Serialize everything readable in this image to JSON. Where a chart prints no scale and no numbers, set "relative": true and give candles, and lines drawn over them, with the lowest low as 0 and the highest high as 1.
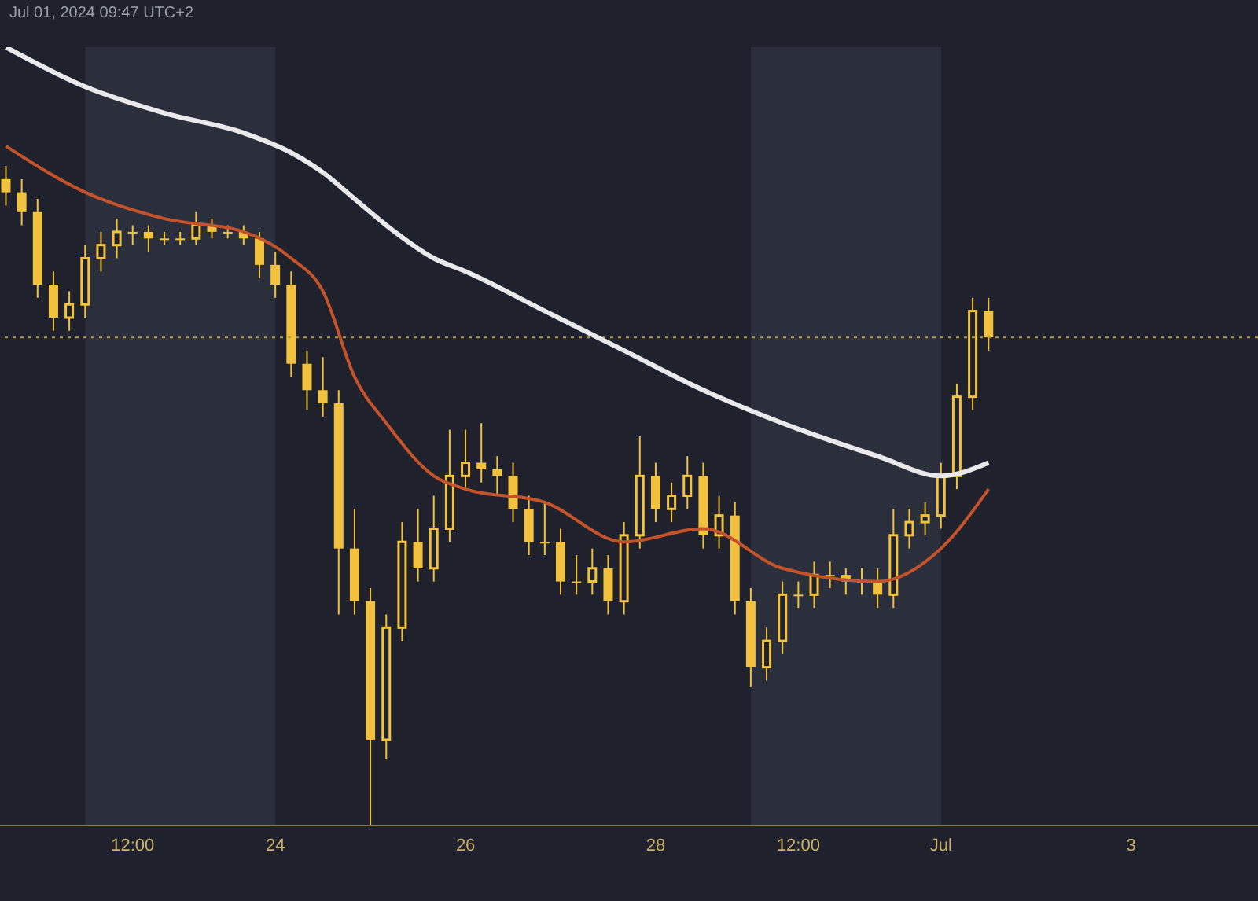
{
  "chart_data": {
    "type": "candlestick",
    "relative": true,
    "subtitle": "Jul 01, 2024 09:47 UTC+2",
    "color": "#f2c23e",
    "x": [
      "2024-06-21T04:00",
      "2024-06-21T08:00",
      "2024-06-21T12:00",
      "2024-06-21T16:00",
      "2024-06-21T20:00",
      "2024-06-22T00:00",
      "2024-06-22T04:00",
      "2024-06-22T08:00",
      "2024-06-22T12:00",
      "2024-06-22T16:00",
      "2024-06-22T20:00",
      "2024-06-23T00:00",
      "2024-06-23T04:00",
      "2024-06-23T08:00",
      "2024-06-23T12:00",
      "2024-06-23T16:00",
      "2024-06-23T20:00",
      "2024-06-24T00:00",
      "2024-06-24T04:00",
      "2024-06-24T08:00",
      "2024-06-24T12:00",
      "2024-06-24T16:00",
      "2024-06-24T20:00",
      "2024-06-25T00:00",
      "2024-06-25T04:00",
      "2024-06-25T08:00",
      "2024-06-25T12:00",
      "2024-06-25T16:00",
      "2024-06-25T20:00",
      "2024-06-26T00:00",
      "2024-06-26T04:00",
      "2024-06-26T08:00",
      "2024-06-26T12:00",
      "2024-06-26T16:00",
      "2024-06-26T20:00",
      "2024-06-27T00:00",
      "2024-06-27T04:00",
      "2024-06-27T08:00",
      "2024-06-27T12:00",
      "2024-06-27T16:00",
      "2024-06-27T20:00",
      "2024-06-28T00:00",
      "2024-06-28T04:00",
      "2024-06-28T08:00",
      "2024-06-28T12:00",
      "2024-06-28T16:00",
      "2024-06-28T20:00",
      "2024-06-29T00:00",
      "2024-06-29T04:00",
      "2024-06-29T08:00",
      "2024-06-29T12:00",
      "2024-06-29T16:00",
      "2024-06-29T20:00",
      "2024-06-30T00:00",
      "2024-06-30T04:00",
      "2024-06-30T08:00",
      "2024-06-30T12:00",
      "2024-06-30T16:00",
      "2024-06-30T20:00",
      "2024-07-01T00:00",
      "2024-07-01T04:00",
      "2024-07-01T08:00",
      "2024-07-01T12:00"
    ],
    "ohlc": [
      [
        0.98,
        1.0,
        0.94,
        0.96
      ],
      [
        0.96,
        0.98,
        0.91,
        0.93
      ],
      [
        0.93,
        0.95,
        0.8,
        0.82
      ],
      [
        0.82,
        0.84,
        0.75,
        0.77
      ],
      [
        0.77,
        0.81,
        0.75,
        0.79
      ],
      [
        0.79,
        0.88,
        0.77,
        0.86
      ],
      [
        0.86,
        0.9,
        0.84,
        0.88
      ],
      [
        0.88,
        0.92,
        0.86,
        0.9
      ],
      [
        0.9,
        0.91,
        0.88,
        0.9
      ],
      [
        0.9,
        0.91,
        0.87,
        0.89
      ],
      [
        0.89,
        0.9,
        0.88,
        0.89
      ],
      [
        0.89,
        0.9,
        0.88,
        0.89
      ],
      [
        0.89,
        0.93,
        0.88,
        0.91
      ],
      [
        0.91,
        0.92,
        0.89,
        0.9
      ],
      [
        0.9,
        0.91,
        0.89,
        0.9
      ],
      [
        0.9,
        0.91,
        0.88,
        0.89
      ],
      [
        0.89,
        0.9,
        0.83,
        0.85
      ],
      [
        0.85,
        0.87,
        0.8,
        0.82
      ],
      [
        0.82,
        0.84,
        0.68,
        0.7
      ],
      [
        0.7,
        0.72,
        0.63,
        0.66
      ],
      [
        0.66,
        0.71,
        0.62,
        0.64
      ],
      [
        0.64,
        0.66,
        0.32,
        0.42
      ],
      [
        0.42,
        0.48,
        0.32,
        0.34
      ],
      [
        0.34,
        0.36,
        0.0,
        0.13
      ],
      [
        0.13,
        0.32,
        0.1,
        0.3
      ],
      [
        0.3,
        0.46,
        0.28,
        0.43
      ],
      [
        0.43,
        0.48,
        0.37,
        0.39
      ],
      [
        0.39,
        0.5,
        0.37,
        0.45
      ],
      [
        0.45,
        0.6,
        0.43,
        0.53
      ],
      [
        0.53,
        0.6,
        0.51,
        0.55
      ],
      [
        0.55,
        0.61,
        0.52,
        0.54
      ],
      [
        0.54,
        0.56,
        0.5,
        0.53
      ],
      [
        0.53,
        0.55,
        0.46,
        0.48
      ],
      [
        0.48,
        0.5,
        0.41,
        0.43
      ],
      [
        0.43,
        0.49,
        0.41,
        0.43
      ],
      [
        0.43,
        0.45,
        0.35,
        0.37
      ],
      [
        0.37,
        0.41,
        0.35,
        0.37
      ],
      [
        0.37,
        0.42,
        0.35,
        0.39
      ],
      [
        0.39,
        0.41,
        0.32,
        0.34
      ],
      [
        0.34,
        0.46,
        0.32,
        0.44
      ],
      [
        0.44,
        0.59,
        0.42,
        0.53
      ],
      [
        0.53,
        0.55,
        0.46,
        0.48
      ],
      [
        0.48,
        0.52,
        0.46,
        0.5
      ],
      [
        0.5,
        0.56,
        0.48,
        0.53
      ],
      [
        0.53,
        0.55,
        0.42,
        0.44
      ],
      [
        0.44,
        0.5,
        0.42,
        0.47
      ],
      [
        0.47,
        0.49,
        0.32,
        0.34
      ],
      [
        0.34,
        0.36,
        0.21,
        0.24
      ],
      [
        0.24,
        0.3,
        0.22,
        0.28
      ],
      [
        0.28,
        0.37,
        0.26,
        0.35
      ],
      [
        0.35,
        0.37,
        0.33,
        0.35
      ],
      [
        0.35,
        0.4,
        0.33,
        0.38
      ],
      [
        0.38,
        0.4,
        0.36,
        0.38
      ],
      [
        0.38,
        0.39,
        0.35,
        0.37
      ],
      [
        0.37,
        0.39,
        0.35,
        0.37
      ],
      [
        0.37,
        0.39,
        0.33,
        0.35
      ],
      [
        0.35,
        0.48,
        0.33,
        0.44
      ],
      [
        0.44,
        0.48,
        0.42,
        0.46
      ],
      [
        0.46,
        0.49,
        0.44,
        0.47
      ],
      [
        0.47,
        0.55,
        0.45,
        0.53
      ],
      [
        0.53,
        0.67,
        0.51,
        0.65
      ],
      [
        0.65,
        0.8,
        0.63,
        0.78
      ],
      [
        0.78,
        0.8,
        0.72,
        0.74
      ]
    ],
    "series": [
      {
        "type": "line",
        "color": "#e9e9ec",
        "x": [
          "2024-06-21T04:00",
          "2024-06-22T00:00",
          "2024-06-22T20:00",
          "2024-06-23T16:00",
          "2024-06-24T04:00",
          "2024-06-24T12:00",
          "2024-06-24T20:00",
          "2024-06-25T04:00",
          "2024-06-25T16:00",
          "2024-06-26T00:00",
          "2024-06-26T20:00",
          "2024-06-27T16:00",
          "2024-06-28T12:00",
          "2024-06-29T08:00",
          "2024-06-30T08:00",
          "2024-07-01T00:00",
          "2024-07-01T12:00"
        ],
        "values": [
          1.18,
          1.12,
          1.08,
          1.05,
          1.02,
          0.99,
          0.95,
          0.91,
          0.86,
          0.84,
          0.78,
          0.72,
          0.66,
          0.61,
          0.56,
          0.53,
          0.55
        ]
      },
      {
        "type": "line",
        "color": "#c4532b",
        "x": [
          "2024-06-21T04:00",
          "2024-06-22T00:00",
          "2024-06-22T20:00",
          "2024-06-23T16:00",
          "2024-06-24T04:00",
          "2024-06-24T12:00",
          "2024-06-24T20:00",
          "2024-06-25T04:00",
          "2024-06-25T16:00",
          "2024-06-26T00:00",
          "2024-06-26T20:00",
          "2024-06-27T16:00",
          "2024-06-28T12:00",
          "2024-06-29T08:00",
          "2024-06-30T08:00",
          "2024-07-01T00:00",
          "2024-07-01T12:00"
        ],
        "values": [
          1.03,
          0.96,
          0.92,
          0.9,
          0.86,
          0.81,
          0.68,
          0.61,
          0.53,
          0.51,
          0.49,
          0.43,
          0.45,
          0.39,
          0.37,
          0.42,
          0.51
        ]
      }
    ],
    "xlim": [
      "2024-06-21T02:30",
      "2024-07-04T08:00"
    ],
    "xticks": [
      {
        "value": "2024-06-22T12:00",
        "label": "12:00"
      },
      {
        "value": "2024-06-24T00:00",
        "label": "24"
      },
      {
        "value": "2024-06-26T00:00",
        "label": "26"
      },
      {
        "value": "2024-06-28T00:00",
        "label": "28"
      },
      {
        "value": "2024-06-29T12:00",
        "label": "12:00"
      },
      {
        "value": "2024-07-01T00:00",
        "label": "Jul"
      },
      {
        "value": "2024-07-03T00:00",
        "label": "3"
      }
    ],
    "ref_lines": [
      {
        "axis": "y",
        "value": 0.74,
        "color": "#b09a45",
        "line_style": "dotted"
      }
    ],
    "bands": [
      {
        "axis": "x",
        "from": "2024-06-22T00:00",
        "to": "2024-06-24T00:00",
        "color": "#2b2f3b"
      },
      {
        "axis": "x",
        "from": "2024-06-29T00:00",
        "to": "2024-07-01T00:00",
        "color": "#2b2f3b"
      }
    ]
  }
}
